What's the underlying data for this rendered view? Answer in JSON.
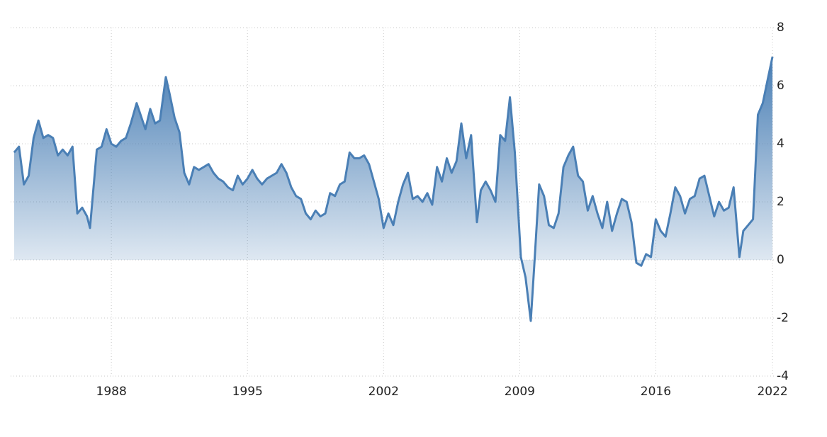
{
  "chart_data": {
    "type": "area",
    "x": [
      1983.0,
      1983.25,
      1983.5,
      1983.75,
      1984.0,
      1984.25,
      1984.5,
      1984.75,
      1985.0,
      1985.25,
      1985.5,
      1985.75,
      1986.0,
      1986.25,
      1986.5,
      1986.75,
      1986.9,
      1987.25,
      1987.5,
      1987.75,
      1988.0,
      1988.25,
      1988.5,
      1988.75,
      1989.0,
      1989.3,
      1989.5,
      1989.75,
      1990.0,
      1990.25,
      1990.5,
      1990.8,
      1991.0,
      1991.25,
      1991.5,
      1991.75,
      1992.0,
      1992.25,
      1992.5,
      1992.75,
      1993.0,
      1993.25,
      1993.5,
      1993.75,
      1994.0,
      1994.25,
      1994.5,
      1994.75,
      1995.0,
      1995.25,
      1995.5,
      1995.75,
      1996.0,
      1996.25,
      1996.5,
      1996.75,
      1997.0,
      1997.25,
      1997.5,
      1997.75,
      1998.0,
      1998.25,
      1998.5,
      1998.75,
      1999.0,
      1999.25,
      1999.5,
      1999.75,
      2000.0,
      2000.25,
      2000.5,
      2000.75,
      2001.0,
      2001.25,
      2001.5,
      2001.75,
      2002.0,
      2002.25,
      2002.5,
      2002.75,
      2003.0,
      2003.25,
      2003.5,
      2003.75,
      2004.0,
      2004.25,
      2004.5,
      2004.75,
      2005.0,
      2005.25,
      2005.5,
      2005.75,
      2006.0,
      2006.25,
      2006.5,
      2006.8,
      2007.0,
      2007.25,
      2007.5,
      2007.75,
      2008.0,
      2008.25,
      2008.5,
      2008.75,
      2009.06,
      2009.3,
      2009.57,
      2009.75,
      2010.0,
      2010.25,
      2010.5,
      2010.75,
      2011.0,
      2011.25,
      2011.5,
      2011.75,
      2012.0,
      2012.25,
      2012.5,
      2012.75,
      2013.0,
      2013.25,
      2013.5,
      2013.75,
      2014.0,
      2014.25,
      2014.5,
      2014.75,
      2015.0,
      2015.25,
      2015.5,
      2015.75,
      2016.0,
      2016.25,
      2016.5,
      2016.75,
      2017.0,
      2017.25,
      2017.5,
      2017.75,
      2018.0,
      2018.25,
      2018.5,
      2018.75,
      2019.0,
      2019.25,
      2019.5,
      2019.75,
      2020.0,
      2020.3,
      2020.5,
      2020.75,
      2021.0,
      2021.25,
      2021.5,
      2021.75,
      2022.0
    ],
    "values": [
      3.7,
      3.9,
      2.6,
      2.9,
      4.2,
      4.8,
      4.2,
      4.3,
      4.2,
      3.6,
      3.8,
      3.6,
      3.9,
      1.6,
      1.8,
      1.5,
      1.1,
      3.8,
      3.9,
      4.5,
      4.0,
      3.9,
      4.1,
      4.2,
      4.7,
      5.4,
      5.0,
      4.5,
      5.2,
      4.7,
      4.8,
      6.3,
      5.7,
      4.9,
      4.4,
      3.0,
      2.6,
      3.2,
      3.1,
      3.2,
      3.3,
      3.0,
      2.8,
      2.7,
      2.5,
      2.4,
      2.9,
      2.6,
      2.8,
      3.1,
      2.8,
      2.6,
      2.8,
      2.9,
      3.0,
      3.3,
      3.0,
      2.5,
      2.2,
      2.1,
      1.6,
      1.4,
      1.7,
      1.5,
      1.6,
      2.3,
      2.2,
      2.6,
      2.7,
      3.7,
      3.5,
      3.5,
      3.6,
      3.3,
      2.7,
      2.1,
      1.1,
      1.6,
      1.2,
      2.0,
      2.6,
      3.0,
      2.1,
      2.2,
      2.0,
      2.3,
      1.9,
      3.2,
      2.7,
      3.5,
      3.0,
      3.4,
      4.7,
      3.5,
      4.3,
      1.3,
      2.4,
      2.7,
      2.4,
      2.0,
      4.3,
      4.1,
      5.6,
      3.7,
      0.1,
      -0.6,
      -2.1,
      -0.2,
      2.6,
      2.2,
      1.2,
      1.1,
      1.6,
      3.2,
      3.6,
      3.9,
      2.9,
      2.7,
      1.7,
      2.2,
      1.6,
      1.1,
      2.0,
      1.0,
      1.6,
      2.1,
      2.0,
      1.3,
      -0.1,
      -0.2,
      0.2,
      0.1,
      1.4,
      1.0,
      0.8,
      1.6,
      2.5,
      2.2,
      1.6,
      2.1,
      2.2,
      2.8,
      2.9,
      2.2,
      1.5,
      2.0,
      1.7,
      1.8,
      2.5,
      0.1,
      1.0,
      1.2,
      1.4,
      5.0,
      5.4,
      6.2,
      7.0
    ],
    "color": "#4a7fb5",
    "xlim": [
      1982.82,
      2022.07
    ],
    "xticks": [
      1988,
      1995,
      2002,
      2009,
      2016,
      2022
    ],
    "ylim": [
      -4,
      8
    ],
    "yticks": [
      8,
      6,
      4,
      2,
      0,
      -2,
      -4
    ],
    "grid": true
  }
}
